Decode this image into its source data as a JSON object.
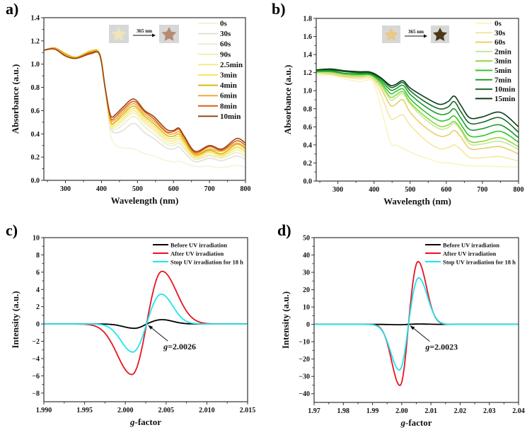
{
  "chart_data": [
    {
      "panel": "a)",
      "type": "line",
      "title": "",
      "xlabel": "Wavelength (nm)",
      "ylabel": "Absorbance (a.u.)",
      "xlim": [
        240,
        800
      ],
      "ylim": [
        0.0,
        1.4
      ],
      "xticks": [
        300,
        400,
        500,
        600,
        700,
        800
      ],
      "yticks": [
        0.0,
        0.2,
        0.4,
        0.6,
        0.8,
        1.0,
        1.2,
        1.4
      ],
      "ytick_labels": [
        "0.0",
        "0.2",
        "0.4",
        "0.6",
        "0.8",
        "1.0",
        "1.2",
        "1.4"
      ],
      "legend_position": "top-right",
      "inset": {
        "label": "365 nm",
        "before_color": "#efe3b8",
        "after_color": "#b98a6e"
      },
      "x": [
        240,
        270,
        300,
        330,
        370,
        395,
        410,
        425,
        440,
        460,
        490,
        520,
        545,
        580,
        600,
        615,
        630,
        660,
        700,
        735,
        775,
        800
      ],
      "series": [
        {
          "name": "0s",
          "color": "#f6f2d8",
          "values": [
            1.12,
            1.14,
            1.09,
            1.06,
            1.11,
            1.08,
            0.78,
            0.4,
            0.3,
            0.28,
            0.27,
            0.23,
            0.21,
            0.17,
            0.16,
            0.165,
            0.15,
            0.12,
            0.12,
            0.11,
            0.13,
            0.11
          ]
        },
        {
          "name": "30s",
          "color": "#e4e0d6",
          "values": [
            1.12,
            1.14,
            1.09,
            1.06,
            1.12,
            1.09,
            0.8,
            0.46,
            0.41,
            0.43,
            0.49,
            0.41,
            0.36,
            0.28,
            0.27,
            0.29,
            0.24,
            0.16,
            0.19,
            0.17,
            0.21,
            0.18
          ]
        },
        {
          "name": "60s",
          "color": "#eeeccc",
          "values": [
            1.12,
            1.14,
            1.09,
            1.06,
            1.12,
            1.09,
            0.8,
            0.47,
            0.44,
            0.48,
            0.55,
            0.46,
            0.4,
            0.31,
            0.3,
            0.32,
            0.27,
            0.18,
            0.21,
            0.19,
            0.24,
            0.2
          ]
        },
        {
          "name": "90s",
          "color": "#f4efb0",
          "values": [
            1.12,
            1.14,
            1.09,
            1.06,
            1.12,
            1.09,
            0.8,
            0.48,
            0.46,
            0.51,
            0.58,
            0.49,
            0.43,
            0.33,
            0.32,
            0.34,
            0.29,
            0.19,
            0.22,
            0.2,
            0.26,
            0.22
          ]
        },
        {
          "name": "2.5min",
          "color": "#f7e98a",
          "values": [
            1.12,
            1.14,
            1.09,
            1.06,
            1.11,
            1.09,
            0.8,
            0.49,
            0.48,
            0.53,
            0.6,
            0.51,
            0.45,
            0.35,
            0.34,
            0.36,
            0.31,
            0.2,
            0.24,
            0.21,
            0.28,
            0.24
          ]
        },
        {
          "name": "3min",
          "color": "#f8e467",
          "values": [
            1.12,
            1.14,
            1.09,
            1.06,
            1.11,
            1.09,
            0.8,
            0.5,
            0.5,
            0.55,
            0.62,
            0.53,
            0.47,
            0.37,
            0.36,
            0.38,
            0.32,
            0.21,
            0.25,
            0.22,
            0.29,
            0.25
          ]
        },
        {
          "name": "4min",
          "color": "#d8b818",
          "values": [
            1.12,
            1.14,
            1.09,
            1.06,
            1.11,
            1.09,
            0.8,
            0.51,
            0.51,
            0.57,
            0.64,
            0.55,
            0.49,
            0.39,
            0.38,
            0.4,
            0.34,
            0.22,
            0.26,
            0.23,
            0.31,
            0.27
          ]
        },
        {
          "name": "6min",
          "color": "#f4a83a",
          "values": [
            1.12,
            1.14,
            1.08,
            1.05,
            1.1,
            1.08,
            0.8,
            0.53,
            0.53,
            0.59,
            0.66,
            0.57,
            0.51,
            0.41,
            0.4,
            0.42,
            0.36,
            0.23,
            0.27,
            0.25,
            0.32,
            0.28
          ]
        },
        {
          "name": "8min",
          "color": "#d9601a",
          "values": [
            1.12,
            1.13,
            1.07,
            1.05,
            1.1,
            1.08,
            0.8,
            0.54,
            0.55,
            0.61,
            0.68,
            0.59,
            0.53,
            0.42,
            0.42,
            0.44,
            0.37,
            0.24,
            0.29,
            0.26,
            0.34,
            0.3
          ]
        },
        {
          "name": "10min",
          "color": "#9c4410",
          "values": [
            1.12,
            1.13,
            1.07,
            1.05,
            1.09,
            1.08,
            0.8,
            0.56,
            0.57,
            0.63,
            0.7,
            0.6,
            0.55,
            0.44,
            0.43,
            0.45,
            0.38,
            0.25,
            0.3,
            0.27,
            0.36,
            0.32
          ]
        }
      ]
    },
    {
      "panel": "b)",
      "type": "line",
      "title": "",
      "xlabel": "Wavelength (nm)",
      "ylabel": "Absorbance (a.u.)",
      "xlim": [
        240,
        800
      ],
      "ylim": [
        0.0,
        1.8
      ],
      "xticks": [
        300,
        400,
        500,
        600,
        700,
        800
      ],
      "yticks": [
        0.0,
        0.2,
        0.4,
        0.6,
        0.8,
        1.0,
        1.2,
        1.4,
        1.6,
        1.8
      ],
      "ytick_labels": [
        "0.0",
        "0.2",
        "0.4",
        "0.6",
        "0.8",
        "1.0",
        "1.2",
        "1.4",
        "1.6",
        "1.8"
      ],
      "legend_position": "top-right",
      "inset": {
        "label": "365 nm",
        "before_color": "#e8c98a",
        "after_color": "#4a3818"
      },
      "x": [
        240,
        280,
        320,
        360,
        385,
        400,
        420,
        445,
        460,
        480,
        500,
        540,
        580,
        605,
        622,
        640,
        665,
        700,
        750,
        800
      ],
      "series": [
        {
          "name": "0s",
          "color": "#faf3c4",
          "values": [
            1.17,
            1.17,
            1.13,
            1.1,
            1.12,
            1.08,
            0.8,
            0.43,
            0.4,
            0.36,
            0.32,
            0.26,
            0.21,
            0.2,
            0.19,
            0.18,
            0.17,
            0.165,
            0.16,
            0.155
          ]
        },
        {
          "name": "30s",
          "color": "#f6e6a0",
          "values": [
            1.19,
            1.18,
            1.15,
            1.13,
            1.14,
            1.11,
            0.95,
            0.7,
            0.7,
            0.73,
            0.62,
            0.46,
            0.36,
            0.37,
            0.4,
            0.35,
            0.26,
            0.26,
            0.27,
            0.22
          ]
        },
        {
          "name": "60s",
          "color": "#e8cf6a",
          "values": [
            1.2,
            1.19,
            1.16,
            1.15,
            1.16,
            1.13,
            1.02,
            0.84,
            0.85,
            0.9,
            0.76,
            0.6,
            0.5,
            0.51,
            0.56,
            0.49,
            0.36,
            0.36,
            0.38,
            0.3
          ]
        },
        {
          "name": "2min",
          "color": "#c7e89a",
          "values": [
            1.2,
            1.2,
            1.17,
            1.16,
            1.17,
            1.14,
            1.05,
            0.9,
            0.92,
            0.97,
            0.85,
            0.69,
            0.58,
            0.59,
            0.64,
            0.56,
            0.41,
            0.41,
            0.44,
            0.35
          ]
        },
        {
          "name": "3min",
          "color": "#8fd83a",
          "values": [
            1.21,
            1.21,
            1.18,
            1.17,
            1.18,
            1.15,
            1.07,
            0.93,
            0.95,
            0.99,
            0.87,
            0.72,
            0.61,
            0.62,
            0.66,
            0.58,
            0.44,
            0.44,
            0.48,
            0.38
          ]
        },
        {
          "name": "5min",
          "color": "#2ec82a",
          "values": [
            1.21,
            1.21,
            1.19,
            1.18,
            1.18,
            1.16,
            1.09,
            0.97,
            0.99,
            1.02,
            0.91,
            0.77,
            0.67,
            0.68,
            0.72,
            0.63,
            0.5,
            0.5,
            0.55,
            0.43
          ]
        },
        {
          "name": "7min",
          "color": "#1e9a2e",
          "values": [
            1.22,
            1.22,
            1.19,
            1.19,
            1.19,
            1.17,
            1.11,
            1.01,
            1.02,
            1.06,
            0.96,
            0.83,
            0.74,
            0.75,
            0.8,
            0.7,
            0.57,
            0.58,
            0.62,
            0.48
          ]
        },
        {
          "name": "10min",
          "color": "#14692a",
          "values": [
            1.23,
            1.23,
            1.21,
            1.2,
            1.2,
            1.18,
            1.13,
            1.04,
            1.05,
            1.09,
            1.0,
            0.88,
            0.8,
            0.82,
            0.88,
            0.77,
            0.64,
            0.65,
            0.7,
            0.54
          ]
        },
        {
          "name": "15min",
          "color": "#0c3a18",
          "values": [
            1.23,
            1.24,
            1.22,
            1.21,
            1.21,
            1.19,
            1.14,
            1.06,
            1.07,
            1.11,
            1.03,
            0.93,
            0.85,
            0.88,
            0.94,
            0.84,
            0.7,
            0.71,
            0.76,
            0.6
          ]
        }
      ]
    },
    {
      "panel": "c)",
      "type": "line",
      "title": "",
      "xlabel": "g-factor",
      "ylabel": "Intensity (a.u.)",
      "xlim": [
        1.99,
        2.015
      ],
      "ylim": [
        -9,
        10
      ],
      "xticks": [
        1.99,
        1.995,
        2.0,
        2.005,
        2.01,
        2.015
      ],
      "xtick_labels": [
        "1.990",
        "1.995",
        "2.000",
        "2.005",
        "2.010",
        "2.015"
      ],
      "yticks": [
        -8,
        -6,
        -4,
        -2,
        0,
        2,
        4,
        6,
        8,
        10
      ],
      "ytick_labels": [
        "−8",
        "−6",
        "−4",
        "−2",
        "0",
        "2",
        "4",
        "6",
        "8",
        "10"
      ],
      "legend_position": "top-right",
      "annotation": {
        "text_prefix": "g",
        "text_value": "=2.0026",
        "g": 2.0026
      },
      "center": 2.0026,
      "series": [
        {
          "name": "Before UV irradiation",
          "color": "#000000",
          "peak_pos": 2.0045,
          "peak": 0.5,
          "trough_pos": 2.0011,
          "trough": -0.5,
          "tail_width": 0.0018
        },
        {
          "name": "After UV irradiation",
          "color": "#e8141e",
          "peak_pos": 2.0045,
          "peak": 6.1,
          "trough_pos": 2.0008,
          "trough": -5.85,
          "tail_width": 0.0024
        },
        {
          "name": "Stop UV irradiation for 18 h",
          "color": "#1ee6ee",
          "peak_pos": 2.0044,
          "peak": 3.45,
          "trough_pos": 2.0009,
          "trough": -3.25,
          "tail_width": 0.0019
        }
      ]
    },
    {
      "panel": "d)",
      "type": "line",
      "title": "",
      "xlabel": "g-factor",
      "ylabel": "Intensity (a.u.)",
      "xlim": [
        1.97,
        2.04
      ],
      "ylim": [
        -45,
        50
      ],
      "xticks": [
        1.97,
        1.98,
        1.99,
        2.0,
        2.01,
        2.02,
        2.03,
        2.04
      ],
      "xtick_labels": [
        "1.97",
        "1.98",
        "1.99",
        "2.00",
        "2.01",
        "2.02",
        "2.03",
        "2.04"
      ],
      "yticks": [
        -40,
        -30,
        -20,
        -10,
        0,
        10,
        20,
        30,
        40,
        50
      ],
      "ytick_labels": [
        "−40",
        "−30",
        "−20",
        "−10",
        "0",
        "10",
        "20",
        "30",
        "40",
        "50"
      ],
      "legend_position": "top-right",
      "annotation": {
        "text_prefix": "g",
        "text_value": "=2.0023",
        "g": 2.0023
      },
      "center": 2.0023,
      "series": [
        {
          "name": "Before UV irradiation",
          "color": "#000000",
          "peak_pos": 2.006,
          "peak": 0.2,
          "trough_pos": 1.999,
          "trough": -0.2,
          "tail_width": 0.004
        },
        {
          "name": "After UV irradiation",
          "color": "#e8141e",
          "peak_pos": 2.0056,
          "peak": 36.2,
          "trough_pos": 1.9994,
          "trough": -35.2,
          "tail_width": 0.0038
        },
        {
          "name": "Stop UV irradiation for 18 h",
          "color": "#1ee6ee",
          "peak_pos": 2.0058,
          "peak": 26.8,
          "trough_pos": 1.9992,
          "trough": -26.3,
          "tail_width": 0.004
        }
      ]
    }
  ]
}
